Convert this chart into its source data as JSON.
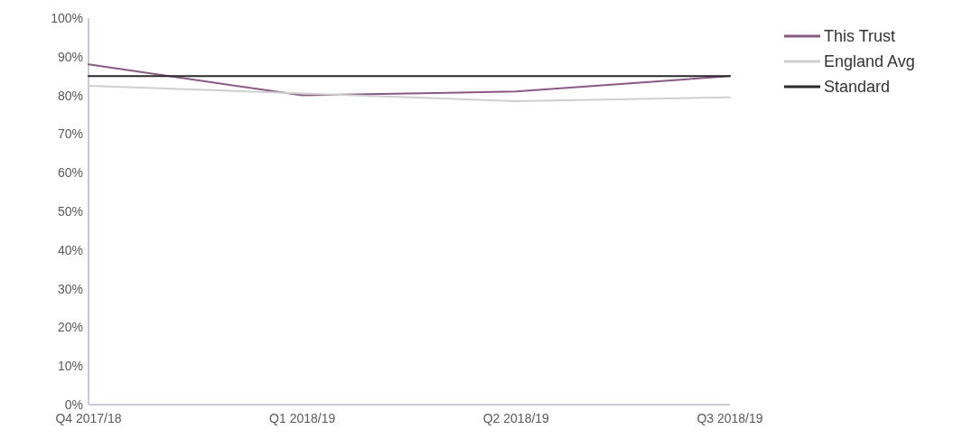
{
  "chart_data": {
    "type": "line",
    "categories": [
      "Q4 2017/18",
      "Q1 2018/19",
      "Q2 2018/19",
      "Q3 2018/19"
    ],
    "series": [
      {
        "name": "This Trust",
        "color": "#8a5a86",
        "values": [
          88,
          80,
          81,
          85
        ]
      },
      {
        "name": "England Avg",
        "color": "#cfcfcf",
        "values": [
          82.5,
          80.5,
          78.5,
          79.5
        ]
      },
      {
        "name": "Standard",
        "color": "#2a2a2a",
        "values": [
          85,
          85,
          85,
          85
        ]
      }
    ],
    "ylim": [
      0,
      100
    ],
    "yticks": [
      {
        "value": 0,
        "label": "0%"
      },
      {
        "value": 10,
        "label": "10%"
      },
      {
        "value": 20,
        "label": "20%"
      },
      {
        "value": 30,
        "label": "30%"
      },
      {
        "value": 40,
        "label": "40%"
      },
      {
        "value": 50,
        "label": "50%"
      },
      {
        "value": 60,
        "label": "60%"
      },
      {
        "value": 70,
        "label": "70%"
      },
      {
        "value": 80,
        "label": "80%"
      },
      {
        "value": 90,
        "label": "90%"
      },
      {
        "value": 100,
        "label": "100%"
      }
    ],
    "legend": "top right",
    "grid": false,
    "marker": "none",
    "line_style": "solid"
  }
}
